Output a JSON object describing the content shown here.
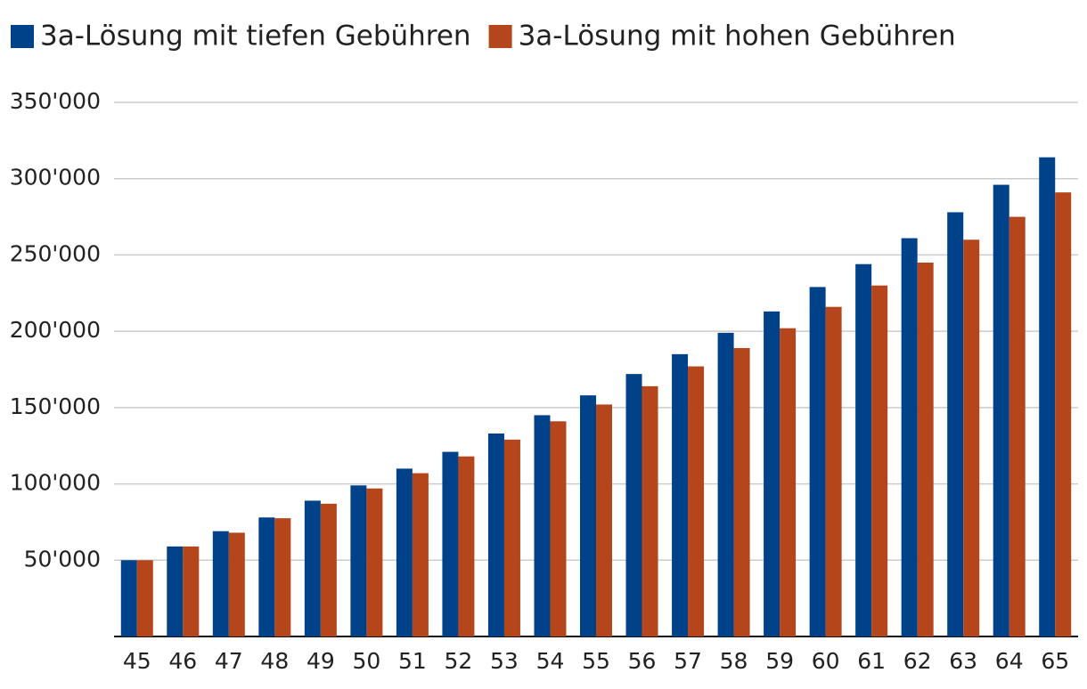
{
  "chart_data": {
    "type": "bar",
    "categories": [
      "45",
      "46",
      "47",
      "48",
      "49",
      "50",
      "51",
      "52",
      "53",
      "54",
      "55",
      "56",
      "57",
      "58",
      "59",
      "60",
      "61",
      "62",
      "63",
      "64",
      "65"
    ],
    "series": [
      {
        "name": "3a-Lösung mit tiefen Gebühren",
        "color": "#00428a",
        "values": [
          50000,
          59000,
          69000,
          78000,
          89000,
          99000,
          110000,
          121000,
          133000,
          145000,
          158000,
          172000,
          185000,
          199000,
          213000,
          229000,
          244000,
          261000,
          278000,
          296000,
          314000
        ]
      },
      {
        "name": "3a-Lösung mit hohen Gebühren",
        "color": "#b5451b",
        "values": [
          50000,
          59000,
          68000,
          77500,
          87000,
          97000,
          107000,
          118000,
          129000,
          141000,
          152000,
          164000,
          177000,
          189000,
          202000,
          216000,
          230000,
          245000,
          260000,
          275000,
          291000
        ]
      }
    ],
    "ylim": [
      0,
      350000
    ],
    "yticks": [
      {
        "value": 50000,
        "label": "50'000"
      },
      {
        "value": 100000,
        "label": "100'000"
      },
      {
        "value": 150000,
        "label": "150'000"
      },
      {
        "value": 200000,
        "label": "200'000"
      },
      {
        "value": 250000,
        "label": "250'000"
      },
      {
        "value": 300000,
        "label": "300'000"
      },
      {
        "value": 350000,
        "label": "350'000"
      }
    ],
    "grid": true,
    "legend": "top"
  }
}
